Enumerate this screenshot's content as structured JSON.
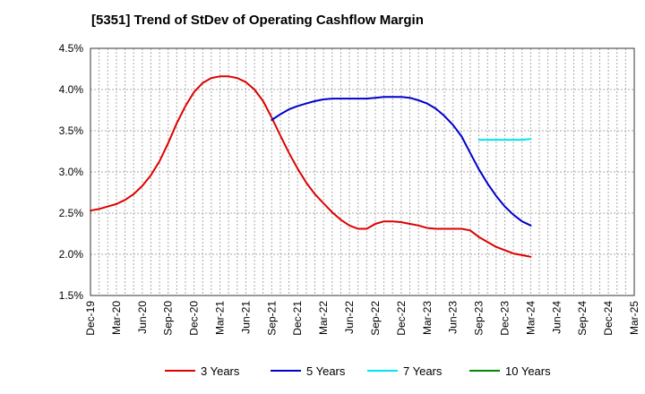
{
  "title": "[5351]  Trend of StDev of Operating Cashflow Margin",
  "chart_data": {
    "type": "line",
    "title": "[5351]  Trend of StDev of Operating Cashflow Margin",
    "xlabel": "",
    "ylabel": "",
    "ylim": [
      1.5,
      4.5
    ],
    "yticks": [
      "1.5%",
      "2.0%",
      "2.5%",
      "3.0%",
      "3.5%",
      "4.0%",
      "4.5%"
    ],
    "ytick_values": [
      1.5,
      2.0,
      2.5,
      3.0,
      3.5,
      4.0,
      4.5
    ],
    "categories": [
      "Dec-19",
      "Mar-20",
      "Jun-20",
      "Sep-20",
      "Dec-20",
      "Mar-21",
      "Jun-21",
      "Sep-21",
      "Dec-21",
      "Mar-22",
      "Jun-22",
      "Sep-22",
      "Dec-22",
      "Mar-23",
      "Jun-23",
      "Sep-23",
      "Dec-23",
      "Mar-24",
      "Jun-24",
      "Sep-24",
      "Dec-24",
      "Mar-25"
    ],
    "grid": true,
    "legend_position": "bottom",
    "series": [
      {
        "name": "3 Years",
        "color": "#dd0000",
        "x": [
          "Dec-19",
          "Jan-20",
          "Feb-20",
          "Mar-20",
          "Apr-20",
          "May-20",
          "Jun-20",
          "Jul-20",
          "Aug-20",
          "Sep-20",
          "Oct-20",
          "Nov-20",
          "Dec-20",
          "Jan-21",
          "Feb-21",
          "Mar-21",
          "Apr-21",
          "May-21",
          "Jun-21",
          "Jul-21",
          "Aug-21",
          "Sep-21",
          "Oct-21",
          "Nov-21",
          "Dec-21",
          "Jan-22",
          "Feb-22",
          "Mar-22",
          "Apr-22",
          "May-22",
          "Jun-22",
          "Jul-22",
          "Aug-22",
          "Sep-22",
          "Oct-22",
          "Nov-22",
          "Dec-22",
          "Jan-23",
          "Feb-23",
          "Mar-23",
          "Apr-23",
          "May-23",
          "Jun-23",
          "Jul-23",
          "Aug-23",
          "Sep-23",
          "Oct-23",
          "Nov-23",
          "Dec-23",
          "Jan-24",
          "Feb-24",
          "Mar-24"
        ],
        "values": [
          2.53,
          2.55,
          2.58,
          2.61,
          2.66,
          2.73,
          2.83,
          2.96,
          3.13,
          3.35,
          3.59,
          3.8,
          3.97,
          4.08,
          4.14,
          4.16,
          4.16,
          4.14,
          4.09,
          4.0,
          3.86,
          3.66,
          3.44,
          3.23,
          3.04,
          2.87,
          2.73,
          2.62,
          2.51,
          2.42,
          2.35,
          2.31,
          2.31,
          2.37,
          2.4,
          2.4,
          2.39,
          2.37,
          2.35,
          2.32,
          2.31,
          2.31,
          2.31,
          2.31,
          2.29,
          2.21,
          2.15,
          2.09,
          2.05,
          2.01,
          1.99,
          1.97
        ]
      },
      {
        "name": "5 Years",
        "color": "#0000cc",
        "x": [
          "Sep-21",
          "Oct-21",
          "Nov-21",
          "Dec-21",
          "Jan-22",
          "Feb-22",
          "Mar-22",
          "Apr-22",
          "May-22",
          "Jun-22",
          "Jul-22",
          "Aug-22",
          "Sep-22",
          "Oct-22",
          "Nov-22",
          "Dec-22",
          "Jan-23",
          "Feb-23",
          "Mar-23",
          "Apr-23",
          "May-23",
          "Jun-23",
          "Jul-23",
          "Aug-23",
          "Sep-23",
          "Oct-23",
          "Nov-23",
          "Dec-23",
          "Jan-24",
          "Feb-24",
          "Mar-24"
        ],
        "values": [
          3.63,
          3.7,
          3.76,
          3.8,
          3.83,
          3.86,
          3.88,
          3.89,
          3.89,
          3.89,
          3.89,
          3.89,
          3.9,
          3.91,
          3.91,
          3.91,
          3.9,
          3.87,
          3.83,
          3.77,
          3.68,
          3.57,
          3.43,
          3.23,
          3.03,
          2.86,
          2.71,
          2.58,
          2.48,
          2.4,
          2.35
        ]
      },
      {
        "name": "7 Years",
        "color": "#00e5ee",
        "x": [
          "Sep-23",
          "Oct-23",
          "Nov-23",
          "Dec-23",
          "Jan-24",
          "Feb-24",
          "Mar-24"
        ],
        "values": [
          3.39,
          3.39,
          3.39,
          3.39,
          3.39,
          3.39,
          3.4
        ]
      },
      {
        "name": "10 Years",
        "color": "#008800",
        "x": [],
        "values": []
      }
    ]
  }
}
